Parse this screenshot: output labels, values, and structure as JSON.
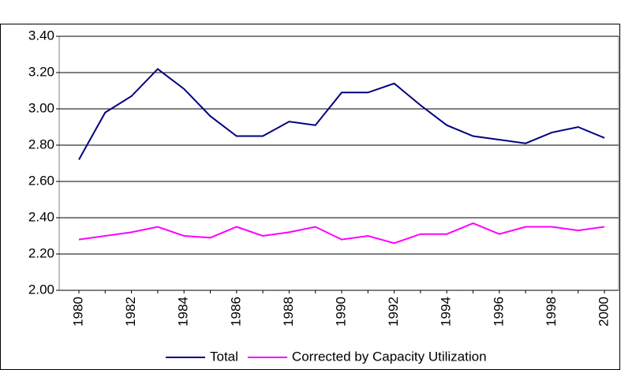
{
  "chart_data": {
    "type": "line",
    "categories": [
      "1980",
      null,
      "1982",
      null,
      "1984",
      null,
      "1986",
      null,
      "1988",
      null,
      "1990",
      null,
      "1992",
      null,
      "1994",
      null,
      "1996",
      null,
      "1998",
      null,
      "2000"
    ],
    "series": [
      {
        "name": "Total",
        "color": "#000080",
        "values": [
          2.72,
          2.98,
          3.07,
          3.22,
          3.11,
          2.96,
          2.85,
          2.85,
          2.93,
          2.91,
          3.09,
          3.09,
          3.14,
          3.02,
          2.91,
          2.85,
          2.83,
          2.81,
          2.87,
          2.9,
          2.84
        ]
      },
      {
        "name": "Corrected by Capacity Utilization",
        "color": "#ff00ff",
        "values": [
          2.28,
          2.3,
          2.32,
          2.35,
          2.3,
          2.29,
          2.35,
          2.3,
          2.32,
          2.35,
          2.28,
          2.3,
          2.26,
          2.31,
          2.31,
          2.37,
          2.31,
          2.35,
          2.35,
          2.33,
          2.35
        ]
      }
    ],
    "ylim": [
      2.0,
      3.4
    ],
    "yticks": [
      {
        "value": 2,
        "label": "2.00"
      },
      {
        "value": 2.2,
        "label": "2.20"
      },
      {
        "value": 2.4,
        "label": "2.40"
      },
      {
        "value": 2.6,
        "label": "2.60"
      },
      {
        "value": 2.8,
        "label": "2.80"
      },
      {
        "value": 3,
        "label": "3.00"
      },
      {
        "value": 3.2,
        "label": "3.20"
      },
      {
        "value": 3.4,
        "label": "3.40"
      }
    ],
    "grid": true,
    "legend": "bottom"
  }
}
